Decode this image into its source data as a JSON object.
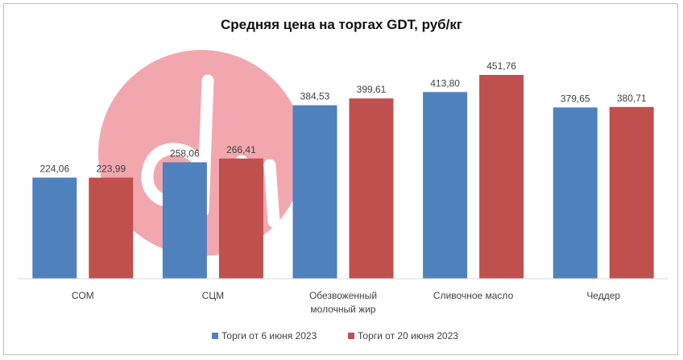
{
  "chart_data": {
    "type": "bar",
    "title": "Средняя цена на торгах GDT, руб/кг",
    "categories": [
      [
        "СОМ"
      ],
      [
        "СЦМ"
      ],
      [
        "Обезвоженный",
        "молочный жир"
      ],
      [
        "Сливочное масло"
      ],
      [
        "Чеддер"
      ]
    ],
    "series": [
      {
        "name": "Торги от 6 июня 2023",
        "color": "#4f81bd",
        "values": [
          224.06,
          258.06,
          384.53,
          413.8,
          379.65
        ],
        "labels": [
          "224,06",
          "258,06",
          "384,53",
          "413,80",
          "379,65"
        ]
      },
      {
        "name": "Торги от 20 июня 2023",
        "color": "#c0504d",
        "values": [
          223.99,
          266.41,
          399.61,
          451.76,
          380.71
        ],
        "labels": [
          "223,99",
          "266,41",
          "399,61",
          "451,76",
          "380,71"
        ]
      }
    ],
    "ylim": [
      0,
      500
    ],
    "grid": false,
    "legend": "bottom"
  }
}
